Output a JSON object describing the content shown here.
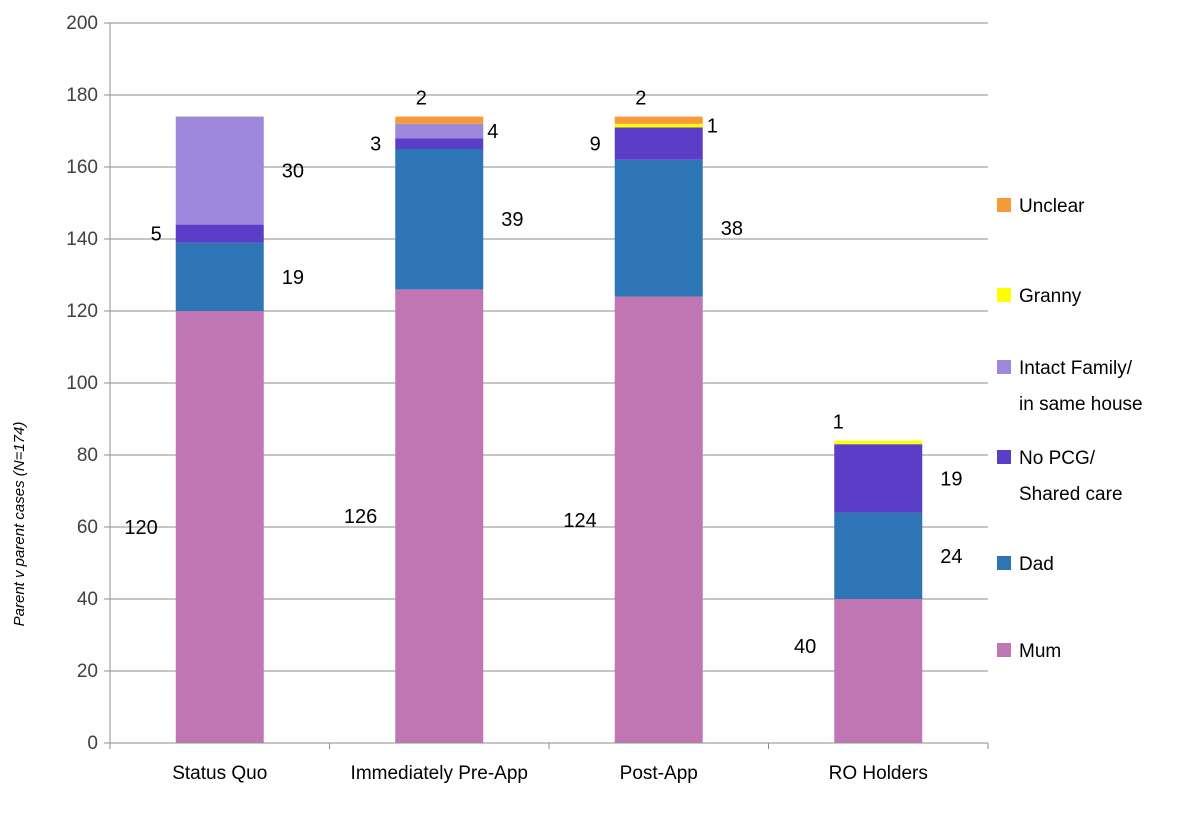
{
  "chart_data": {
    "type": "bar",
    "stacked": true,
    "ylabel": "Parent v parent cases (N=174)",
    "ylim": [
      0,
      200
    ],
    "yticks": [
      0,
      20,
      40,
      60,
      80,
      100,
      120,
      140,
      160,
      180,
      200
    ],
    "grid": true,
    "legend_position": "right",
    "categories": [
      "Status Quo",
      "Immediately Pre-App",
      "Post-App",
      "RO Holders"
    ],
    "series": [
      {
        "name": "Mum",
        "color": "#C176B4",
        "values": [
          120,
          126,
          124,
          40
        ]
      },
      {
        "name": "Dad",
        "color": "#2E75B6",
        "values": [
          19,
          39,
          38,
          24
        ]
      },
      {
        "name": "No PCG/Shared care",
        "color": "#5B3EC8",
        "values": [
          5,
          3,
          9,
          19
        ]
      },
      {
        "name": "Intact Family/ in same house",
        "color": "#9D88DB",
        "values": [
          30,
          4,
          0,
          0
        ]
      },
      {
        "name": "Granny",
        "color": "#FFFF00",
        "values": [
          0,
          0,
          1,
          1
        ]
      },
      {
        "name": "Unclear",
        "color": "#F79A3A",
        "values": [
          0,
          2,
          2,
          0
        ]
      }
    ]
  }
}
